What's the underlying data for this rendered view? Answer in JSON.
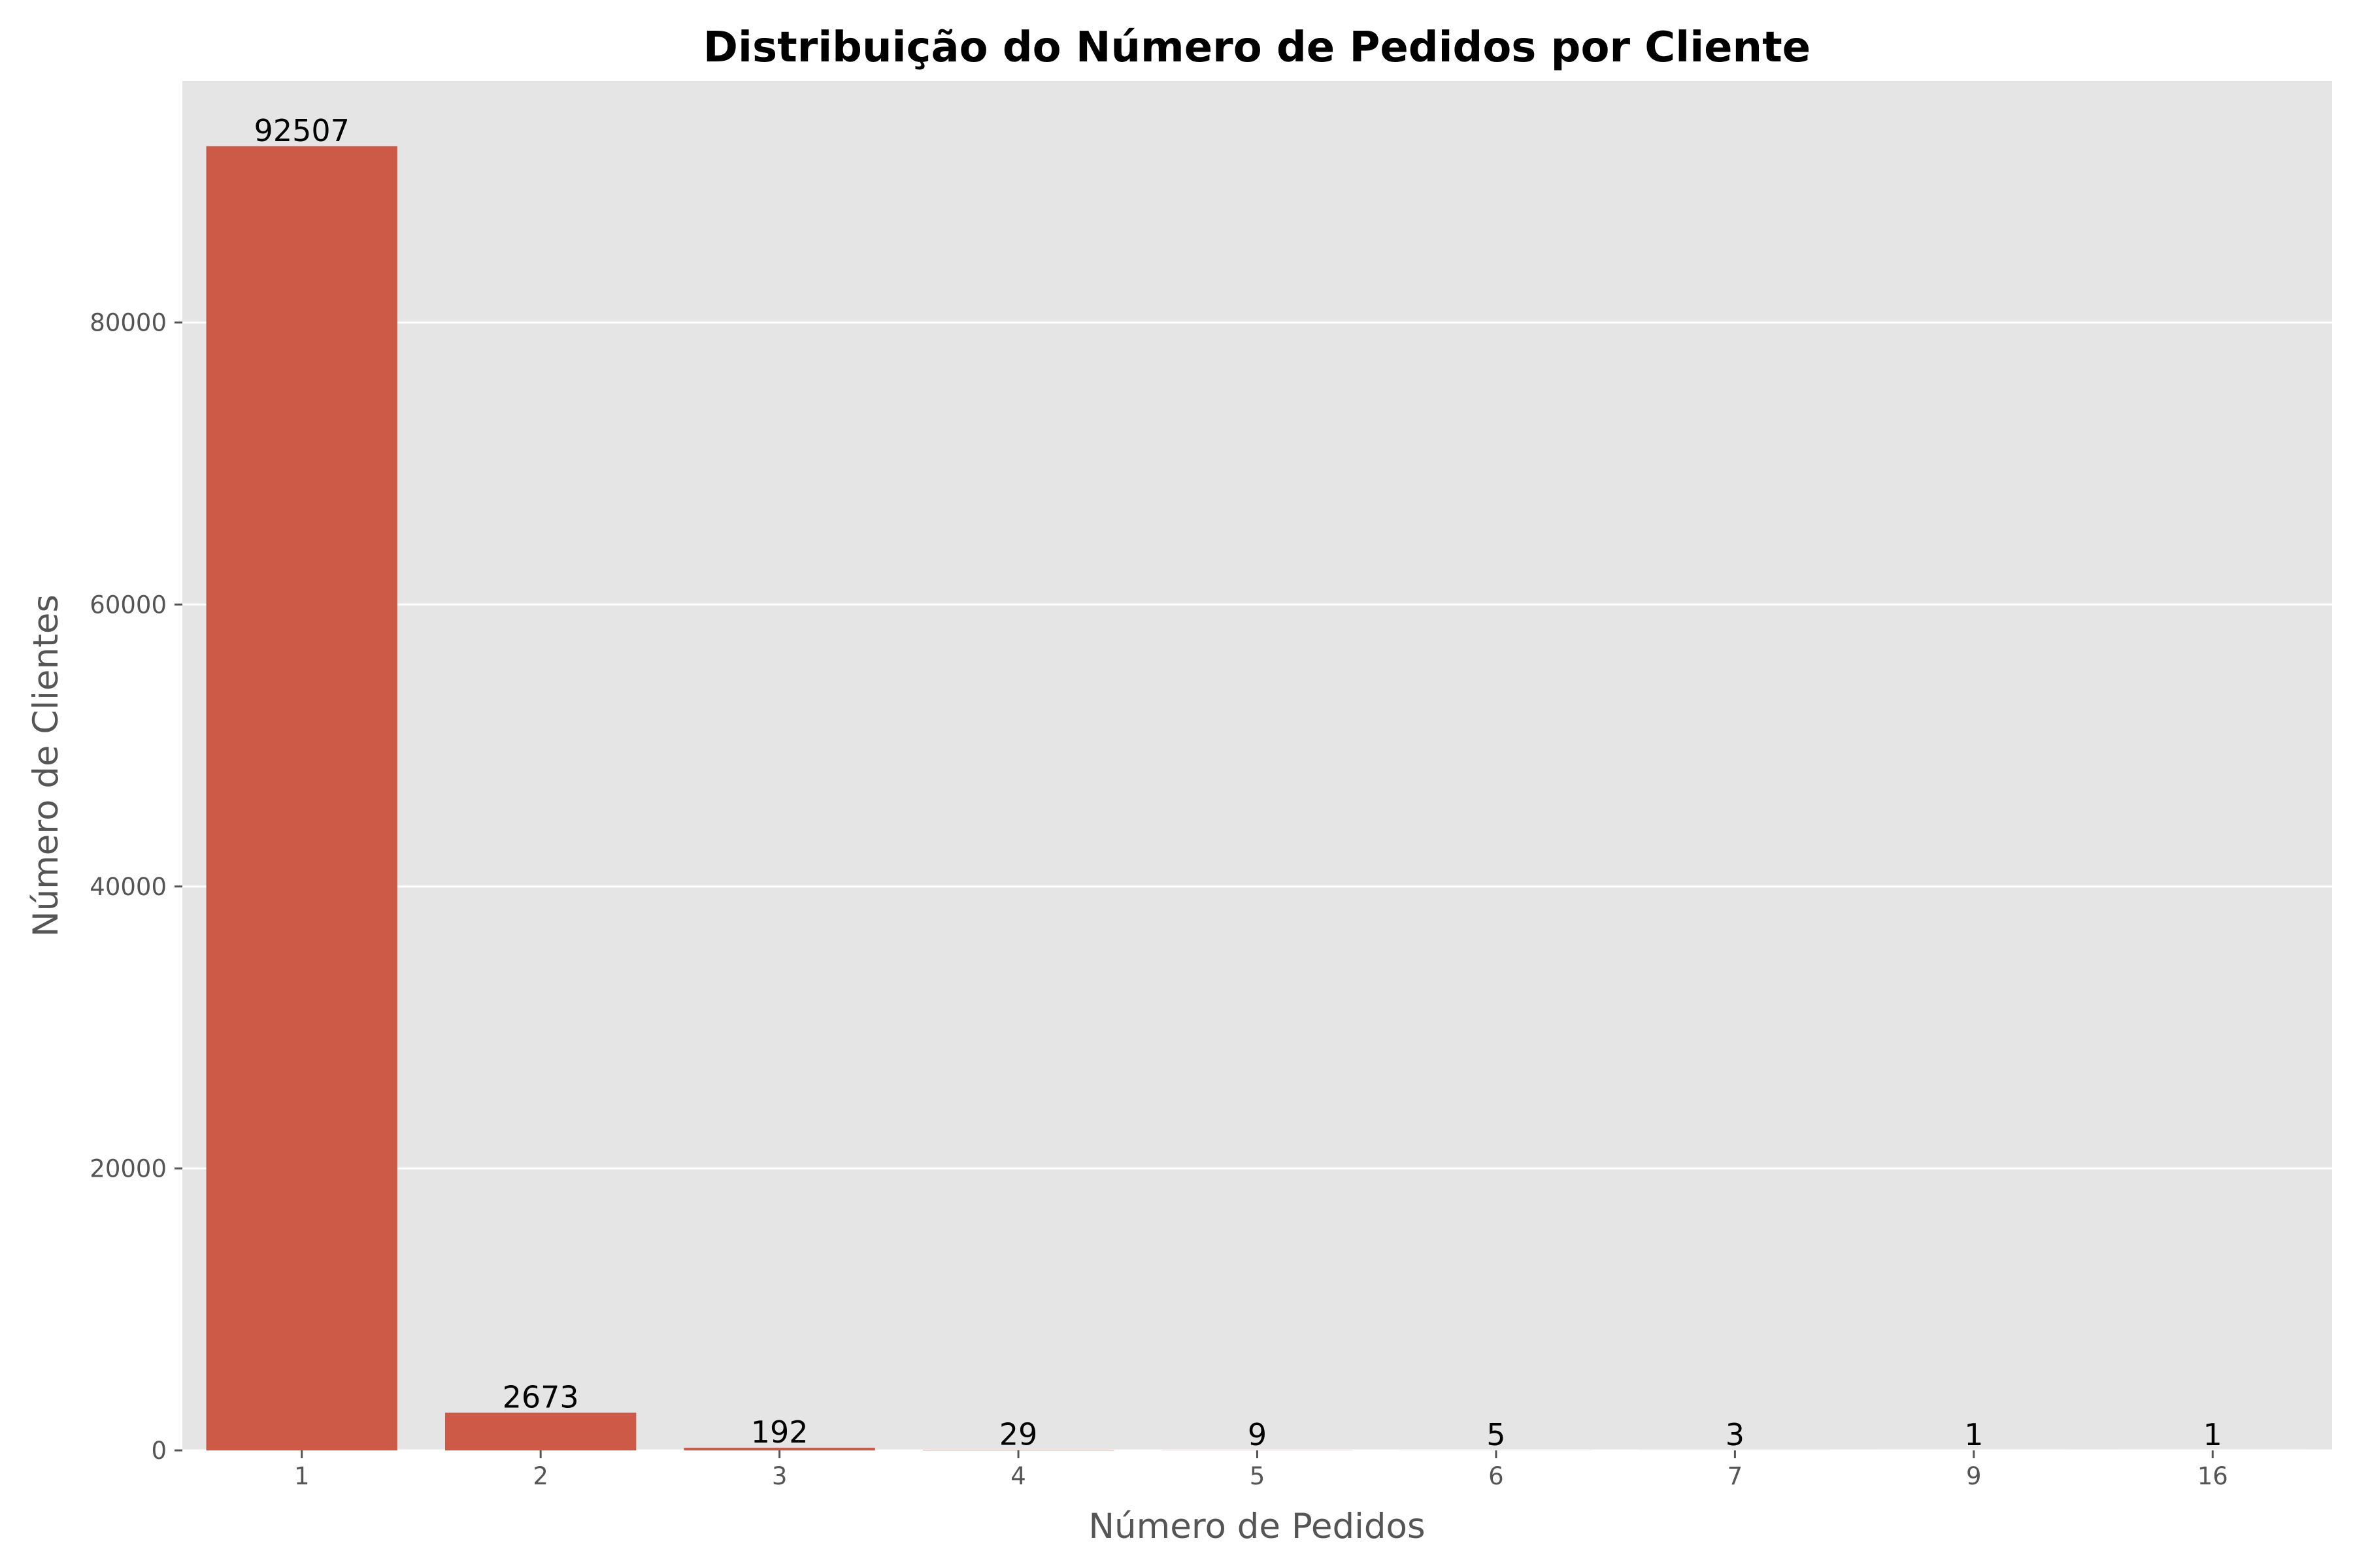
{
  "chart_data": {
    "type": "bar",
    "title": "Distribuição do Número de Pedidos por Cliente",
    "xlabel": "Número de Pedidos",
    "ylabel": "Número de Clientes",
    "categories": [
      "1",
      "2",
      "3",
      "4",
      "5",
      "6",
      "7",
      "9",
      "16"
    ],
    "values": [
      92507,
      2673,
      192,
      29,
      9,
      5,
      3,
      1,
      1
    ],
    "data_labels": [
      "92507",
      "2673",
      "192",
      "29",
      "9",
      "5",
      "3",
      "1",
      "1"
    ],
    "yticks": [
      0,
      20000,
      40000,
      60000,
      80000
    ],
    "ylim": [
      0,
      97132
    ],
    "grid": true,
    "bar_color": "#CD5A47",
    "background_color": "#E5E5E5"
  }
}
